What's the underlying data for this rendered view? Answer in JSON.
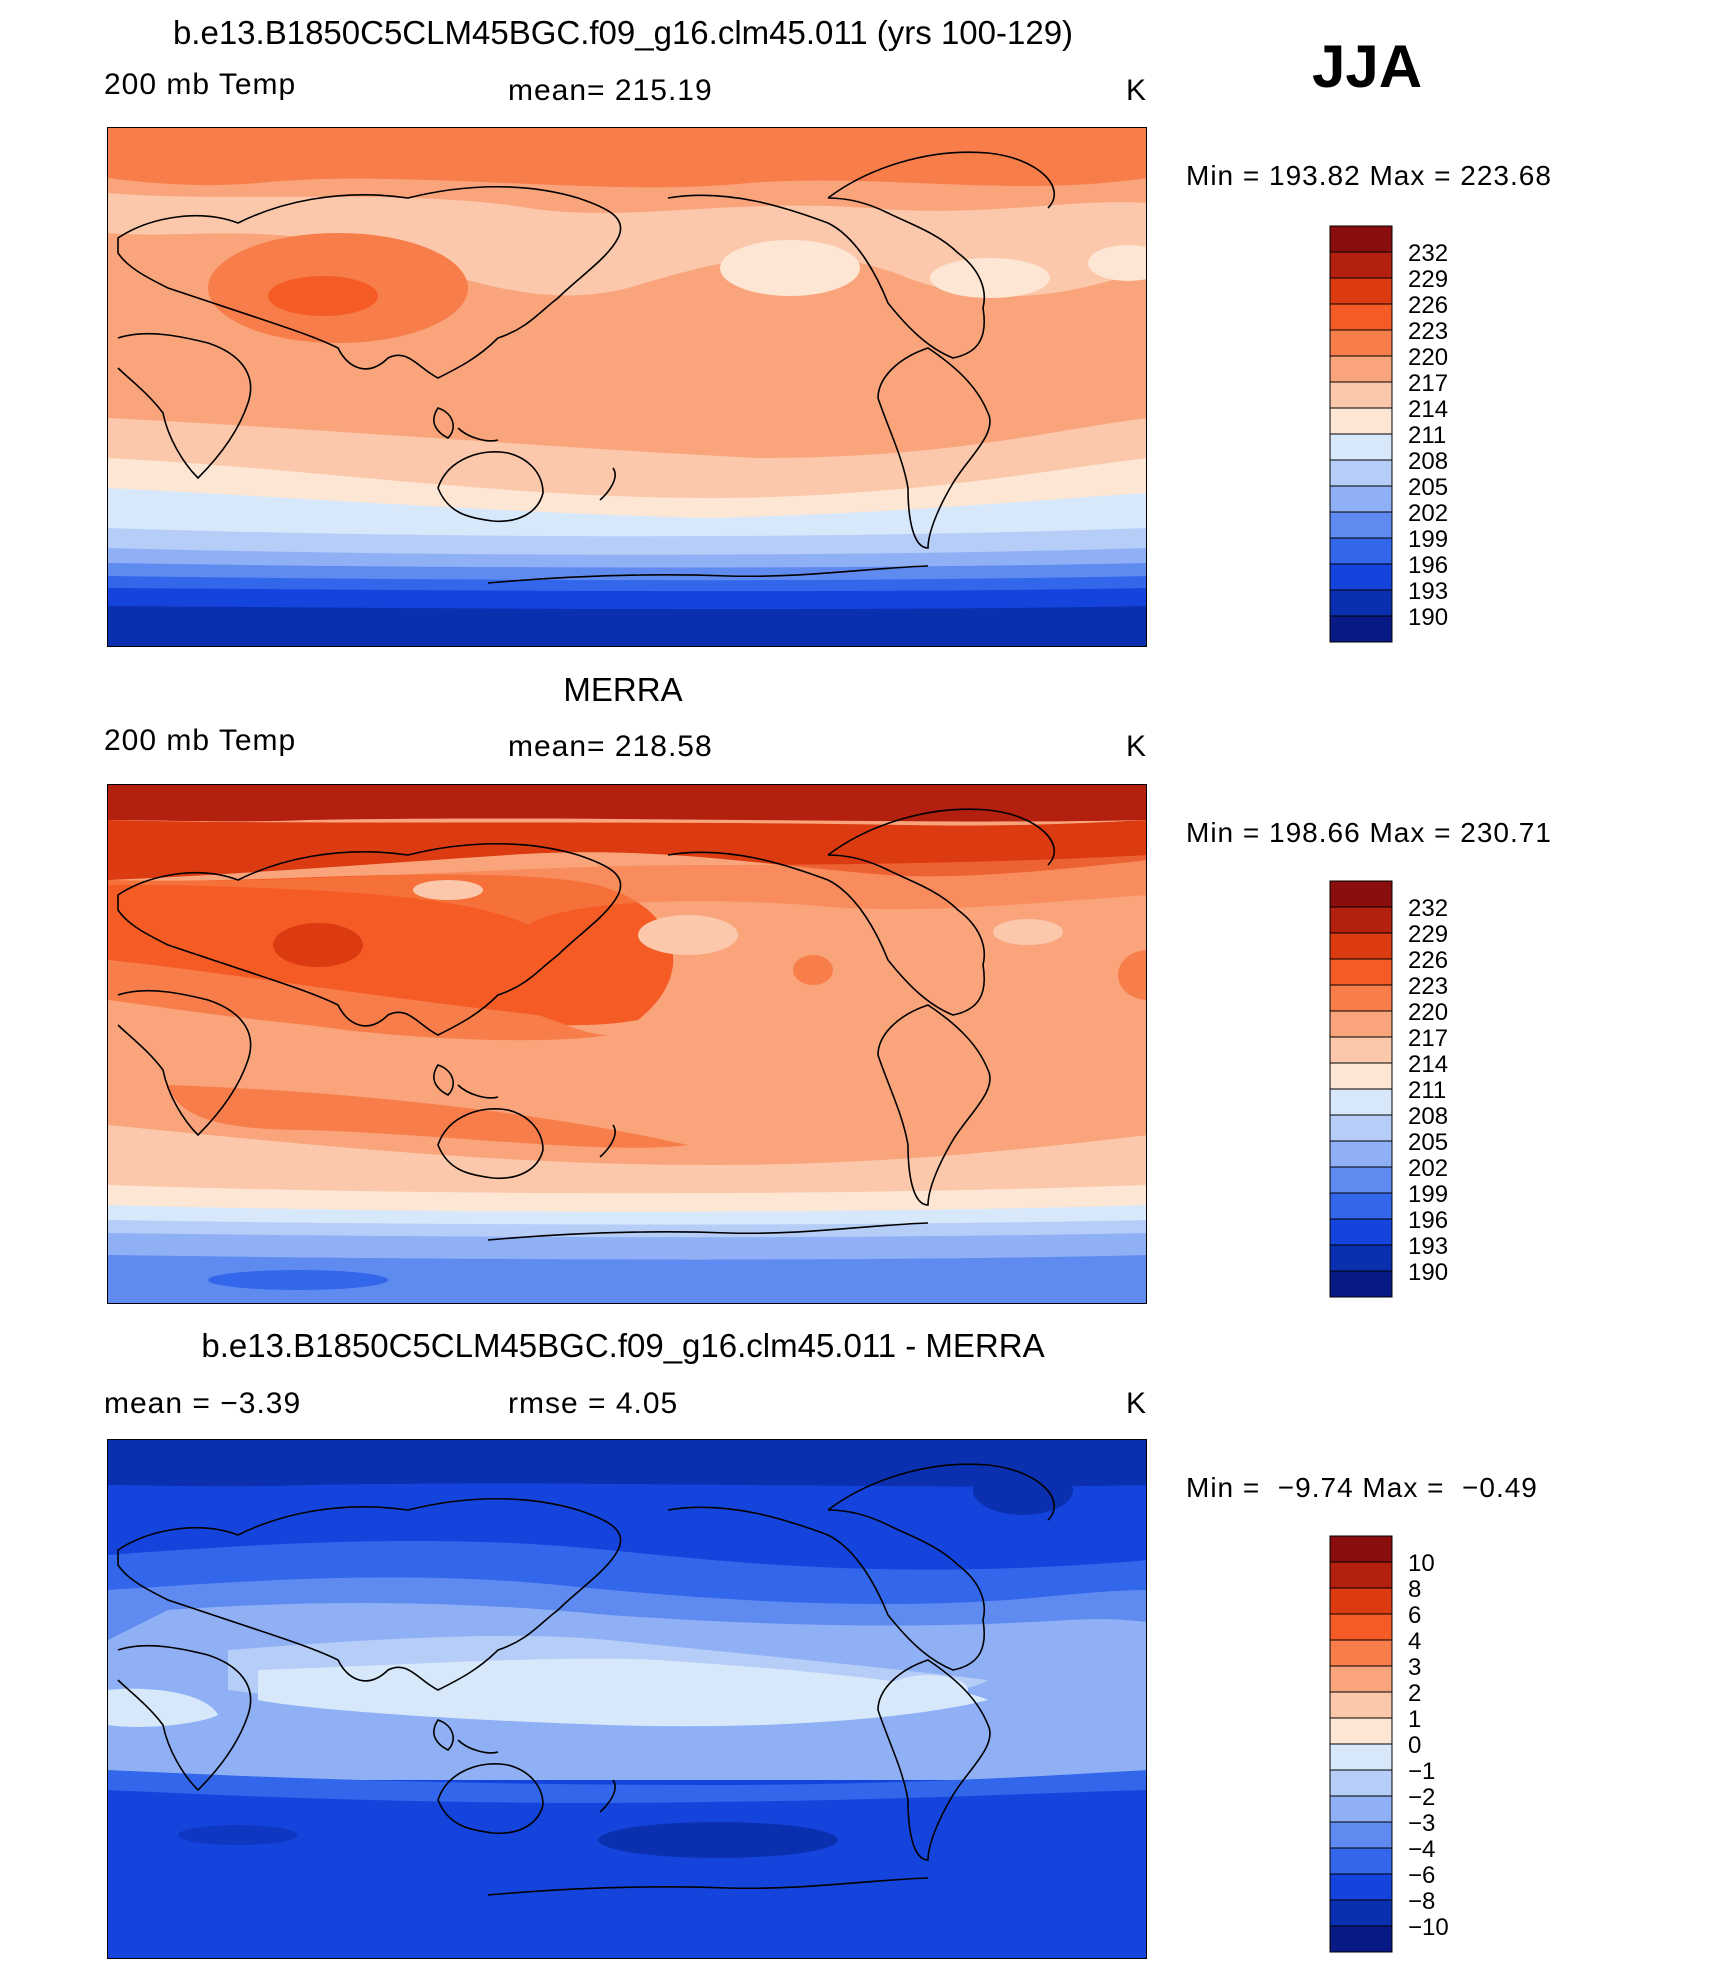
{
  "season": "JJA",
  "panels": [
    {
      "title": "b.e13.B1850C5CLM45BGC.f09_g16.clm45.011 (yrs 100-129)",
      "left_label": "200 mb Temp",
      "mid_label": "mean= 215.19",
      "units": "K",
      "minmax": "Min = 193.82 Max = 223.68",
      "colorbar_labels": [
        "232",
        "229",
        "226",
        "223",
        "220",
        "217",
        "214",
        "211",
        "208",
        "205",
        "202",
        "199",
        "196",
        "193",
        "190"
      ]
    },
    {
      "title": "MERRA",
      "left_label": "200 mb Temp",
      "mid_label": "mean= 218.58",
      "units": "K",
      "minmax": "Min = 198.66 Max = 230.71",
      "colorbar_labels": [
        "232",
        "229",
        "226",
        "223",
        "220",
        "217",
        "214",
        "211",
        "208",
        "205",
        "202",
        "199",
        "196",
        "193",
        "190"
      ]
    },
    {
      "title": "b.e13.B1850C5CLM45BGC.f09_g16.clm45.011 - MERRA",
      "left_label": "mean =   −3.39",
      "mid_label": "rmse =    4.05",
      "units": "K",
      "minmax": "Min =  −9.74 Max =  −0.49",
      "colorbar_labels": [
        "10",
        "8",
        "6",
        "4",
        "3",
        "2",
        "1",
        "0",
        "−1",
        "−2",
        "−3",
        "−4",
        "−6",
        "−8",
        "−10"
      ]
    }
  ],
  "palette": [
    "#8b0e0e",
    "#b3200f",
    "#dc3b12",
    "#f55c25",
    "#f77d4a",
    "#f9a47b",
    "#fbc8ac",
    "#fde6d4",
    "#d8e8fb",
    "#b6cdf8",
    "#8fb0f5",
    "#5f8af0",
    "#3266eb",
    "#1444dc",
    "#0a30b0",
    "#071a86"
  ]
}
